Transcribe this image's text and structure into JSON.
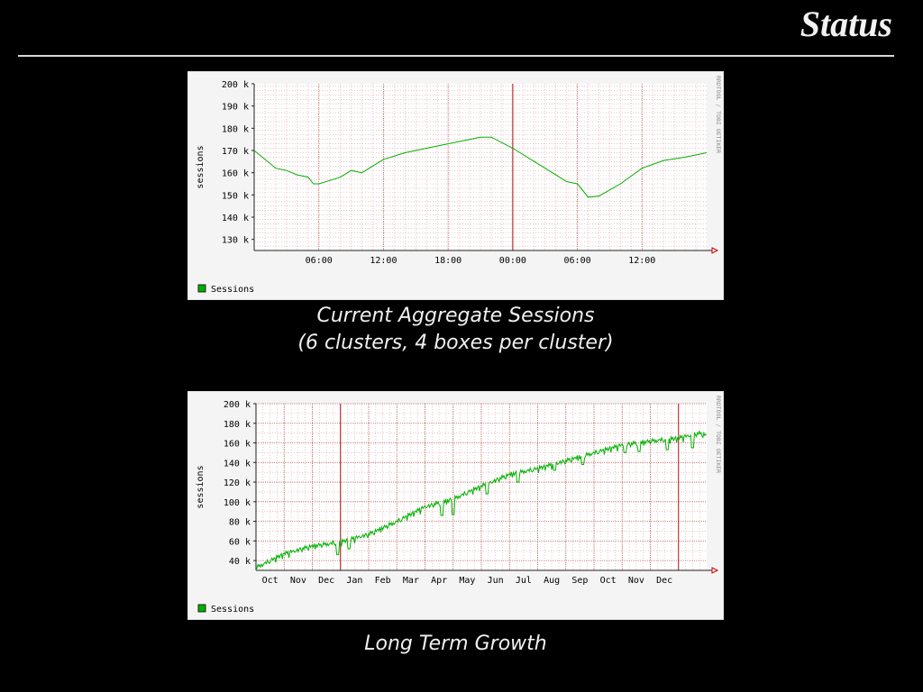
{
  "slide": {
    "title": "Status"
  },
  "charts": [
    {
      "caption_lines": [
        "Current Aggregate Sessions",
        "(6 clusters, 4 boxes per cluster)"
      ]
    },
    {
      "caption_lines": [
        "Long Term Growth"
      ]
    }
  ],
  "colors": {
    "background": "#000000",
    "panel": "#f4f4f4",
    "plot": "#ffffff",
    "grid": "#e0a0a0",
    "major_grid": "#b01010",
    "line": "#00b000",
    "text": "#000000"
  },
  "chart_data": [
    {
      "type": "line",
      "ylabel": "sessions",
      "watermark": "RRDTOOL / TOBI OETIKER",
      "x_ticks": [
        "06:00",
        "12:00",
        "18:00",
        "00:00",
        "06:00",
        "12:00"
      ],
      "x_range_hours": [
        0,
        42
      ],
      "x_tick_hours": [
        6,
        12,
        18,
        24,
        30,
        36
      ],
      "major_vline_hours": [
        24
      ],
      "y_ticks": [
        "130 k",
        "140 k",
        "150 k",
        "160 k",
        "170 k",
        "180 k",
        "190 k",
        "200 k"
      ],
      "ylim": [
        125000,
        200000
      ],
      "y_grid_step": 2000,
      "y_label_step": 10000,
      "legend": [
        {
          "name": "Sessions",
          "color": "#00b000"
        }
      ],
      "series": [
        {
          "name": "Sessions",
          "x": [
            0,
            1,
            2,
            3,
            4,
            5,
            5.5,
            6,
            7,
            8,
            9,
            10,
            11,
            12,
            14,
            16,
            18,
            20,
            21,
            22,
            24,
            26,
            28,
            29,
            30,
            31,
            32,
            34,
            36,
            38,
            40,
            42
          ],
          "values": [
            170000,
            166000,
            162000,
            161000,
            159000,
            158000,
            155000,
            155000,
            156500,
            158000,
            161000,
            160000,
            163000,
            166000,
            169000,
            171000,
            173000,
            175000,
            176000,
            176000,
            171000,
            165000,
            159000,
            156000,
            155000,
            149000,
            149500,
            155000,
            162000,
            165500,
            167000,
            169000
          ]
        }
      ]
    },
    {
      "type": "line",
      "ylabel": "sessions",
      "watermark": "RRDTOOL / TOBI OETIKER",
      "x_ticks": [
        "Oct",
        "Nov",
        "Dec",
        "Jan",
        "Feb",
        "Mar",
        "Apr",
        "May",
        "Jun",
        "Jul",
        "Aug",
        "Sep",
        "Oct",
        "Nov",
        "Dec"
      ],
      "x_range_months": [
        0,
        16
      ],
      "major_vline_months": [
        3,
        15
      ],
      "y_ticks": [
        "40 k",
        "60 k",
        "80 k",
        "100 k",
        "120 k",
        "140 k",
        "160 k",
        "180 k",
        "200 k"
      ],
      "ylim": [
        30000,
        200000
      ],
      "y_grid_step": 10000,
      "y_label_step": 20000,
      "legend": [
        {
          "name": "Sessions",
          "color": "#00b000"
        }
      ],
      "series": [
        {
          "name": "Sessions",
          "x": [
            0,
            1,
            2,
            3,
            4,
            5,
            6,
            7,
            8,
            9,
            10,
            11,
            12,
            13,
            14,
            15,
            15.7,
            16
          ],
          "values": [
            33000,
            47000,
            55000,
            59000,
            67000,
            80000,
            95000,
            103000,
            116000,
            128000,
            134000,
            142000,
            150000,
            158000,
            162000,
            165000,
            170000,
            168000
          ],
          "dips": [
            [
              2.9,
              46000
            ],
            [
              3.3,
              52000
            ],
            [
              6.6,
              86000
            ],
            [
              7.0,
              87000
            ],
            [
              8.2,
              108000
            ],
            [
              9.3,
              120000
            ],
            [
              10.6,
              132000
            ],
            [
              11.6,
              138000
            ],
            [
              13.1,
              150000
            ],
            [
              13.6,
              151000
            ],
            [
              14.6,
              153000
            ],
            [
              15.5,
              155000
            ]
          ]
        }
      ]
    }
  ]
}
